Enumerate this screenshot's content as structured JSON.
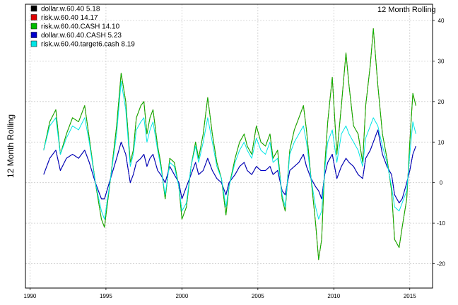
{
  "chart_data": {
    "type": "line",
    "title": "12 Month Rolling",
    "ylabel": "12 Month Rolling",
    "xlabel": "",
    "xlim": [
      1989.7,
      2016.5
    ],
    "ylim": [
      -26,
      44
    ],
    "x_ticks": [
      1990,
      1995,
      2000,
      2005,
      2010,
      2015
    ],
    "y_ticks": [
      -20,
      -10,
      0,
      10,
      20,
      30,
      40
    ],
    "grid": true,
    "legend_position": "top-left",
    "legend": [
      {
        "label": "dollar.w.60.40  5.18",
        "color": "#000000"
      },
      {
        "label": "risk.w.60.40 14.17",
        "color": "#dd0000"
      },
      {
        "label": "risk.w.60.40.CASH 14.10",
        "color": "#00bb00"
      },
      {
        "label": "dollar.w.60.40.CASH  5.23",
        "color": "#0000cc"
      },
      {
        "label": "risk.w.60.40.target6.cash  8.19",
        "color": "#00e5e5"
      }
    ],
    "x": [
      1990.9,
      1991.3,
      1991.7,
      1992.0,
      1992.4,
      1992.8,
      1993.2,
      1993.6,
      1993.9,
      1994.3,
      1994.7,
      1994.9,
      1995.3,
      1995.7,
      1996.0,
      1996.3,
      1996.6,
      1996.8,
      1997.0,
      1997.3,
      1997.5,
      1997.7,
      1997.9,
      1998.1,
      1998.4,
      1998.6,
      1998.9,
      1999.2,
      1999.5,
      1999.8,
      2000.0,
      2000.3,
      2000.6,
      2000.9,
      2001.1,
      2001.4,
      2001.7,
      2002.0,
      2002.3,
      2002.6,
      2002.9,
      2003.1,
      2003.5,
      2003.8,
      2004.1,
      2004.3,
      2004.6,
      2004.9,
      2005.2,
      2005.5,
      2005.8,
      2006.0,
      2006.3,
      2006.6,
      2006.8,
      2007.1,
      2007.4,
      2007.7,
      2008.0,
      2008.2,
      2008.5,
      2008.8,
      2009.0,
      2009.2,
      2009.4,
      2009.6,
      2009.9,
      2010.2,
      2010.5,
      2010.8,
      2011.0,
      2011.3,
      2011.6,
      2011.9,
      2012.1,
      2012.4,
      2012.6,
      2012.9,
      2013.2,
      2013.5,
      2013.8,
      2014.0,
      2014.3,
      2014.5,
      2014.8,
      2015.0,
      2015.2,
      2015.4
    ],
    "series": [
      {
        "name": "dollar.w.60.40  5.18",
        "color": "#000000",
        "values": [
          2,
          6,
          8,
          3,
          6,
          7,
          6,
          8,
          5,
          0,
          -4,
          -4,
          1,
          6,
          10,
          7,
          0,
          2,
          5,
          6,
          7,
          4,
          6,
          7,
          3,
          2,
          0,
          4,
          2,
          0,
          -4,
          -1,
          2,
          5,
          2,
          3,
          6,
          3,
          1,
          0,
          -3,
          0,
          2,
          4,
          5,
          3,
          2,
          4,
          3,
          3,
          4,
          2,
          3,
          -2,
          -3,
          3,
          4,
          5,
          7,
          4,
          1,
          -1,
          -2,
          -4,
          2,
          5,
          7,
          1,
          4,
          6,
          5,
          4,
          2,
          1,
          6,
          8,
          10,
          13,
          7,
          4,
          2,
          -3,
          -5,
          -4,
          0,
          3,
          7,
          9
        ]
      },
      {
        "name": "risk.w.60.40 14.17",
        "color": "#dd0000",
        "values": [
          8,
          15,
          18,
          7,
          12,
          16,
          15,
          19,
          11,
          0,
          -9,
          -11,
          1,
          14,
          27,
          20,
          5,
          8,
          16,
          19,
          20,
          12,
          16,
          18,
          9,
          5,
          -4,
          6,
          5,
          -1,
          -9,
          -6,
          4,
          10,
          6,
          12,
          21,
          12,
          5,
          1,
          -8,
          -1,
          6,
          10,
          12,
          9,
          7,
          14,
          10,
          9,
          12,
          6,
          8,
          -4,
          -7,
          8,
          13,
          16,
          19,
          13,
          1,
          -10,
          -19,
          -14,
          4,
          15,
          26,
          7,
          19,
          32,
          24,
          14,
          12,
          5,
          19,
          29,
          38,
          24,
          12,
          6,
          -2,
          -14,
          -16,
          -11,
          -4,
          10,
          22,
          19
        ]
      },
      {
        "name": "risk.w.60.40.CASH 14.10",
        "color": "#00bb00",
        "values": [
          8,
          15,
          18,
          7,
          12,
          16,
          15,
          19,
          11,
          0,
          -9,
          -11,
          1,
          14,
          27,
          20,
          5,
          8,
          16,
          19,
          20,
          12,
          16,
          18,
          9,
          5,
          -4,
          6,
          5,
          -1,
          -9,
          -6,
          4,
          10,
          6,
          12,
          21,
          12,
          5,
          1,
          -8,
          -1,
          6,
          10,
          12,
          9,
          7,
          14,
          10,
          9,
          12,
          6,
          8,
          -4,
          -7,
          8,
          13,
          16,
          19,
          13,
          1,
          -10,
          -19,
          -14,
          4,
          15,
          26,
          7,
          19,
          32,
          24,
          14,
          12,
          5,
          19,
          29,
          38,
          24,
          12,
          6,
          -2,
          -14,
          -16,
          -11,
          -4,
          10,
          22,
          19
        ]
      },
      {
        "name": "dollar.w.60.40.CASH  5.23",
        "color": "#0000cc",
        "values": [
          2,
          6,
          8,
          3,
          6,
          7,
          6,
          8,
          5,
          0,
          -4,
          -4,
          1,
          6,
          10,
          7,
          0,
          2,
          5,
          6,
          7,
          4,
          6,
          7,
          3,
          2,
          0,
          4,
          2,
          0,
          -4,
          -1,
          2,
          5,
          2,
          3,
          6,
          3,
          1,
          0,
          -3,
          0,
          2,
          4,
          5,
          3,
          2,
          4,
          3,
          3,
          4,
          2,
          3,
          -2,
          -3,
          3,
          4,
          5,
          7,
          4,
          1,
          -1,
          -2,
          -4,
          2,
          5,
          7,
          1,
          4,
          6,
          5,
          4,
          2,
          1,
          6,
          8,
          10,
          13,
          7,
          4,
          2,
          -3,
          -5,
          -4,
          0,
          3,
          7,
          9
        ]
      },
      {
        "name": "risk.w.60.40.target6.cash  8.19",
        "color": "#00e5e5",
        "values": [
          8,
          14,
          16,
          7,
          11,
          14,
          13,
          16,
          10,
          0,
          -7,
          -9,
          1,
          12,
          25,
          18,
          4,
          7,
          13,
          15,
          16,
          10,
          13,
          15,
          8,
          4,
          -3,
          5,
          4,
          -1,
          -7,
          -5,
          4,
          9,
          5,
          10,
          16,
          10,
          4,
          1,
          -6,
          -1,
          5,
          8,
          10,
          8,
          6,
          11,
          8,
          7,
          10,
          5,
          6,
          -3,
          -6,
          7,
          10,
          12,
          14,
          10,
          1,
          -6,
          -9,
          -7,
          3,
          10,
          13,
          5,
          12,
          14,
          12,
          10,
          8,
          4,
          11,
          14,
          16,
          14,
          9,
          5,
          -1,
          -6,
          -7,
          -5,
          -2,
          7,
          15,
          12
        ]
      }
    ]
  }
}
